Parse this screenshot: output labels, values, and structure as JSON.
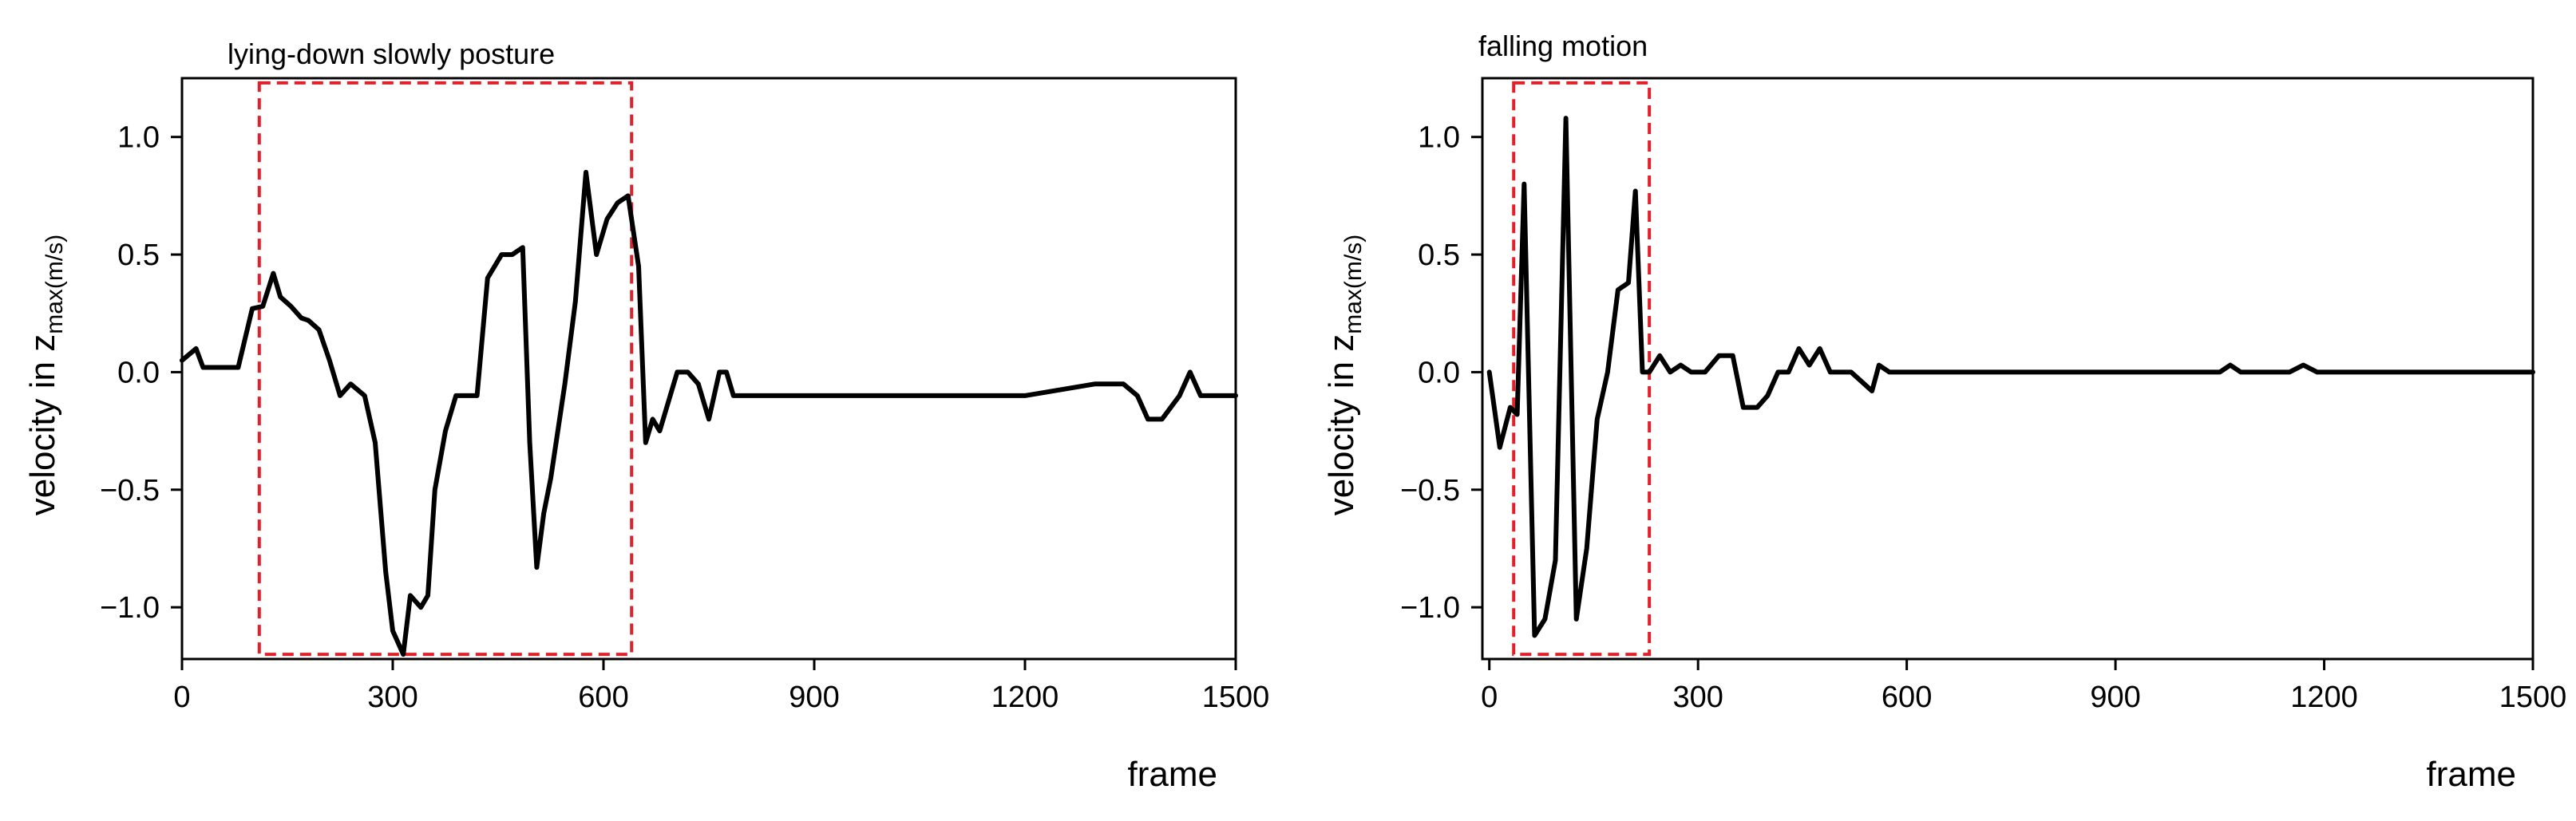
{
  "chart_data": [
    {
      "type": "line",
      "title": "lying-down slowly posture",
      "xlabel": "frame",
      "ylabel_main": "velocity in z",
      "ylabel_sub": "max(m/s)",
      "xlim": [
        0,
        1500
      ],
      "ylim": [
        -1.22,
        1.25
      ],
      "xticks": [
        0,
        300,
        600,
        900,
        1200,
        1500
      ],
      "xtick_labels": [
        "0",
        "300",
        "600",
        "900",
        "1200",
        "1500"
      ],
      "yticks": [
        1.0,
        0.5,
        0.0,
        -0.5,
        -1.0
      ],
      "ytick_labels": [
        "1.0",
        "0.5",
        "0.0",
        "−0.5",
        "−1.0"
      ],
      "grid": false,
      "highlight_box": {
        "x": [
          110,
          640
        ],
        "y": [
          -1.2,
          1.23
        ],
        "color": "#e0202a"
      },
      "series": [
        {
          "color": "#000000",
          "x": [
            0,
            20,
            30,
            40,
            60,
            80,
            100,
            115,
            130,
            140,
            155,
            170,
            180,
            195,
            210,
            225,
            240,
            260,
            275,
            290,
            300,
            315,
            325,
            340,
            350,
            360,
            375,
            390,
            405,
            420,
            435,
            455,
            470,
            485,
            495,
            505,
            515,
            525,
            545,
            560,
            575,
            590,
            605,
            620,
            635,
            650,
            660,
            670,
            680,
            695,
            705,
            720,
            735,
            750,
            765,
            775,
            785,
            795,
            820,
            860,
            900,
            1000,
            1100,
            1200,
            1300,
            1340,
            1360,
            1375,
            1395,
            1420,
            1435,
            1450,
            1470,
            1500
          ],
          "y": [
            0.05,
            0.1,
            0.02,
            0.02,
            0.02,
            0.02,
            0.27,
            0.28,
            0.42,
            0.32,
            0.28,
            0.23,
            0.22,
            0.18,
            0.05,
            -0.1,
            -0.05,
            -0.1,
            -0.3,
            -0.85,
            -1.1,
            -1.2,
            -0.95,
            -1.0,
            -0.95,
            -0.5,
            -0.25,
            -0.1,
            -0.1,
            -0.1,
            0.4,
            0.5,
            0.5,
            0.53,
            -0.3,
            -0.83,
            -0.6,
            -0.45,
            -0.05,
            0.3,
            0.85,
            0.5,
            0.65,
            0.72,
            0.75,
            0.45,
            -0.3,
            -0.2,
            -0.25,
            -0.1,
            0.0,
            0.0,
            -0.05,
            -0.2,
            0.0,
            0.0,
            -0.1,
            -0.1,
            -0.1,
            -0.1,
            -0.1,
            -0.1,
            -0.1,
            -0.1,
            -0.05,
            -0.05,
            -0.1,
            -0.2,
            -0.2,
            -0.1,
            0.0,
            -0.1,
            -0.1,
            -0.1
          ]
        }
      ]
    },
    {
      "type": "line",
      "title": "falling motion",
      "xlabel": "frame",
      "ylabel_main": "velocity in z",
      "ylabel_sub": "max(m/s)",
      "xlim": [
        -10,
        1500
      ],
      "ylim": [
        -1.22,
        1.25
      ],
      "xticks": [
        0,
        300,
        600,
        900,
        1200,
        1500
      ],
      "xtick_labels": [
        "0",
        "300",
        "600",
        "900",
        "1200",
        "1500"
      ],
      "yticks": [
        1.0,
        0.5,
        0.0,
        -0.5,
        -1.0
      ],
      "ytick_labels": [
        "1.0",
        "0.5",
        "0.0",
        "−0.5",
        "−1.0"
      ],
      "grid": false,
      "highlight_box": {
        "x": [
          35,
          230
        ],
        "y": [
          -1.2,
          1.23
        ],
        "color": "#e0202a"
      },
      "series": [
        {
          "color": "#000000",
          "x": [
            0,
            15,
            30,
            40,
            50,
            65,
            80,
            95,
            110,
            125,
            140,
            155,
            170,
            185,
            200,
            210,
            220,
            230,
            245,
            260,
            275,
            290,
            310,
            330,
            350,
            365,
            385,
            400,
            415,
            430,
            445,
            460,
            475,
            490,
            520,
            550,
            560,
            575,
            700,
            900,
            1000,
            1050,
            1065,
            1080,
            1150,
            1170,
            1190,
            1300,
            1500
          ],
          "y": [
            0.0,
            -0.32,
            -0.15,
            -0.18,
            0.8,
            -1.12,
            -1.05,
            -0.8,
            1.08,
            -1.05,
            -0.75,
            -0.2,
            0.0,
            0.35,
            0.38,
            0.77,
            0.0,
            0.0,
            0.07,
            0.0,
            0.03,
            0.0,
            0.0,
            0.07,
            0.07,
            -0.15,
            -0.15,
            -0.1,
            0.0,
            0.0,
            0.1,
            0.03,
            0.1,
            0.0,
            0.0,
            -0.08,
            0.03,
            0.0,
            0.0,
            0.0,
            0.0,
            0.0,
            0.03,
            0.0,
            0.0,
            0.03,
            0.0,
            0.0,
            0.0
          ]
        }
      ]
    }
  ]
}
